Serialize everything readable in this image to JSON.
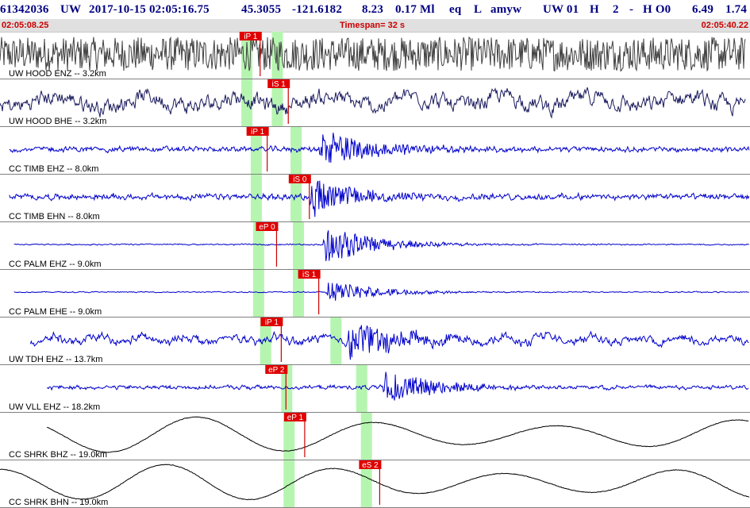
{
  "header": {
    "event_id": "61342036",
    "network": "UW",
    "datetime": "2017-10-15 02:05:16.75",
    "latitude": "45.3055",
    "longitude": "-121.6182",
    "depth": "8.23",
    "magnitude": "0.17 Ml",
    "event_type": "eq",
    "location_flag": "L",
    "author": "amyw",
    "source": "UW 01",
    "quality": "H",
    "flag2": "2",
    "dash": "-",
    "origin_flag": "H O0",
    "val1": "6.49",
    "val2": "1.74"
  },
  "timebar": {
    "start": "02:05:08.25",
    "timespan": "Timespan=  32 s",
    "end": "02:05:40.22"
  },
  "chart_data": {
    "type": "line",
    "time_range_s": [
      0,
      32
    ],
    "channels": [
      {
        "label": "UW HOOD ENZ -- 3.2km",
        "color": "#404040",
        "kind": "noise",
        "start_s": 0.0,
        "end_s": 31.8,
        "amp": 0.85,
        "event_s": null,
        "picks": [
          {
            "label": "iP 1",
            "time_s": 11.1
          }
        ],
        "windows": [
          10.5,
          11.8
        ]
      },
      {
        "label": "UW HOOD BHE -- 3.2km",
        "color": "#1a1a5e",
        "kind": "noise",
        "start_s": 0.0,
        "end_s": 31.8,
        "amp": 0.55,
        "event_s": null,
        "picks": [
          {
            "label": "iS 1",
            "time_s": 12.3
          }
        ],
        "windows": [
          10.5,
          11.8
        ]
      },
      {
        "label": "CC TIMB EHZ -- 8.0km",
        "color": "#0000cc",
        "kind": "event",
        "start_s": 0.4,
        "end_s": 32.0,
        "amp": 0.2,
        "event_s": 13.6,
        "event_amp": 1.0,
        "picks": [
          {
            "label": "iP 1",
            "time_s": 11.4
          }
        ],
        "windows": [
          10.9,
          12.6
        ]
      },
      {
        "label": "CC TIMB EHN -- 8.0km",
        "color": "#0000cc",
        "kind": "event",
        "start_s": 0.4,
        "end_s": 32.0,
        "amp": 0.22,
        "event_s": 13.2,
        "event_amp": 1.0,
        "picks": [
          {
            "label": "iS 0",
            "time_s": 13.2
          }
        ],
        "windows": [
          10.9,
          12.6
        ]
      },
      {
        "label": "CC PALM EHZ -- 9.0km",
        "color": "#0000cc",
        "kind": "event",
        "start_s": 0.6,
        "end_s": 32.2,
        "amp": 0.05,
        "event_s": 13.8,
        "event_amp": 1.0,
        "picks": [
          {
            "label": "eP 0",
            "time_s": 11.8
          }
        ],
        "windows": [
          11.0,
          12.7
        ]
      },
      {
        "label": "CC PALM EHE -- 9.0km",
        "color": "#0000cc",
        "kind": "event",
        "start_s": 0.6,
        "end_s": 32.2,
        "amp": 0.04,
        "event_s": 13.9,
        "event_amp": 0.6,
        "picks": [
          {
            "label": "iS 1",
            "time_s": 13.6
          }
        ],
        "windows": [
          11.0,
          12.7
        ]
      },
      {
        "label": "UW TDH EHZ -- 13.7km",
        "color": "#0000cc",
        "kind": "event",
        "start_s": 1.3,
        "end_s": 32.8,
        "amp": 0.3,
        "event_s": 14.8,
        "event_amp": 1.0,
        "picks": [
          {
            "label": "iP 1",
            "time_s": 12.0
          }
        ],
        "windows": [
          11.3,
          14.3
        ]
      },
      {
        "label": "UW VLL EHZ -- 18.2km",
        "color": "#0000cc",
        "kind": "event",
        "start_s": 2.0,
        "end_s": 33.6,
        "amp": 0.15,
        "event_s": 16.3,
        "event_amp": 0.9,
        "picks": [
          {
            "label": "eP 2",
            "time_s": 12.2
          }
        ],
        "windows": [
          12.2,
          15.4
        ]
      },
      {
        "label": "CC SHRK BHZ -- 19.0km",
        "color": "#000000",
        "kind": "wave",
        "start_s": 2.0,
        "end_s": 33.6,
        "amp": 0.9,
        "event_s": null,
        "picks": [
          {
            "label": "eP 1",
            "time_s": 13.0
          }
        ],
        "windows": [
          12.3,
          15.6
        ]
      },
      {
        "label": "CC SHRK BHN -- 19.0km",
        "color": "#000000",
        "kind": "wave",
        "start_s": 0.0,
        "end_s": 33.6,
        "amp": 0.9,
        "event_s": null,
        "picks": [
          {
            "label": "eS 2",
            "time_s": 16.2
          }
        ],
        "windows": [
          12.3,
          15.6
        ]
      }
    ]
  }
}
